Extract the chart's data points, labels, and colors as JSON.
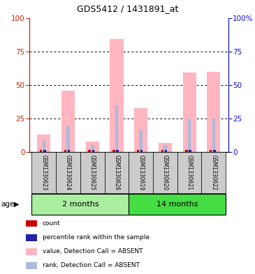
{
  "title": "GDS5412 / 1431891_at",
  "samples": [
    "GSM1330623",
    "GSM1330624",
    "GSM1330625",
    "GSM1330626",
    "GSM1330619",
    "GSM1330620",
    "GSM1330621",
    "GSM1330622"
  ],
  "value_absent": [
    13,
    46,
    8,
    84,
    33,
    7,
    59,
    60
  ],
  "rank_absent": [
    9,
    20,
    5,
    35,
    16,
    5,
    25,
    25
  ],
  "ylim": [
    0,
    100
  ],
  "yticks": [
    0,
    25,
    50,
    75,
    100
  ],
  "bar_color_absent_value": "#FFB6C1",
  "bar_color_absent_rank": "#AABBDD",
  "bar_color_count": "#CC0000",
  "bar_color_percentile": "#2222AA",
  "bg_color_sample": "#CCCCCC",
  "group_color_2m": "#AAEEA0",
  "group_color_14m": "#44DD44",
  "left_axis_color": "#CC2200",
  "right_axis_color": "#1111CC",
  "wide_bar_width": 0.55,
  "narrow_bar_width": 0.13,
  "tiny_bar_width": 0.1,
  "tiny_bar_height": 1.8,
  "legend_items": [
    {
      "color": "#CC0000",
      "label": "count"
    },
    {
      "color": "#2222AA",
      "label": "percentile rank within the sample"
    },
    {
      "color": "#FFB6C1",
      "label": "value, Detection Call = ABSENT"
    },
    {
      "color": "#AABBDD",
      "label": "rank, Detection Call = ABSENT"
    }
  ]
}
